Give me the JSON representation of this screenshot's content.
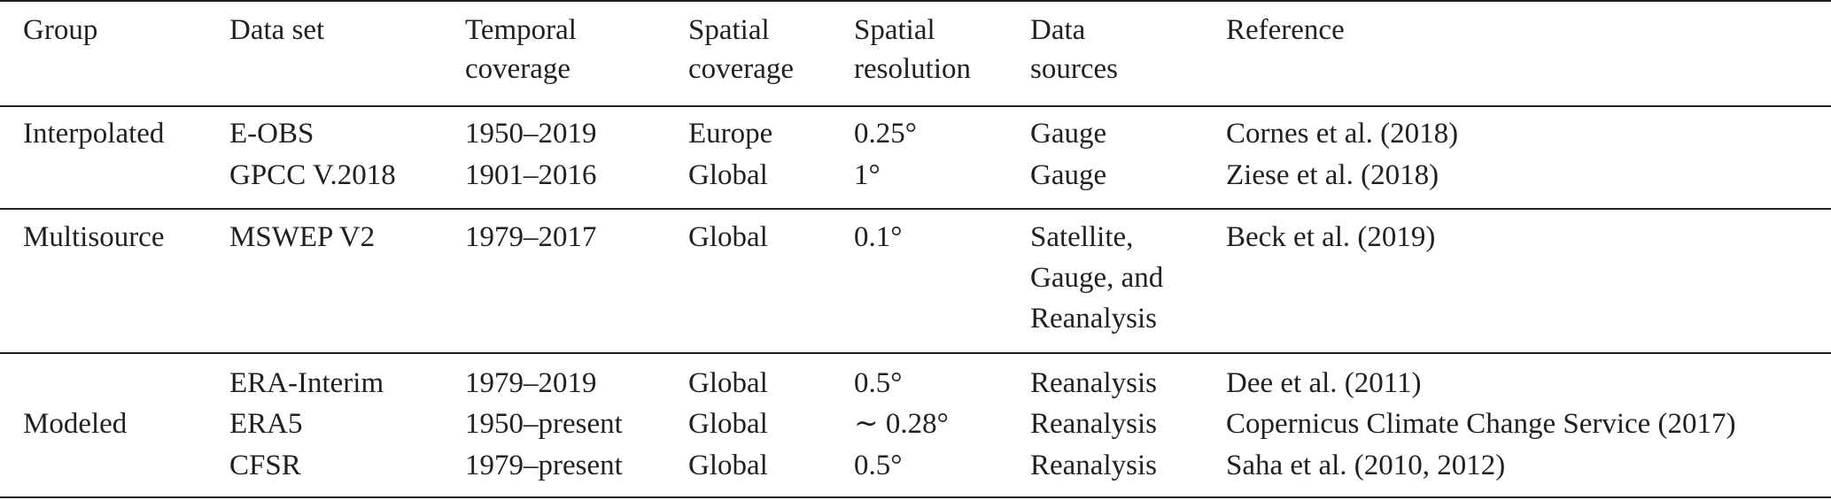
{
  "header": {
    "group": "Group",
    "dataset": "Data set",
    "temporal": [
      "Temporal",
      "coverage"
    ],
    "spatial_cov": [
      "Spatial",
      "coverage"
    ],
    "spatial_res": [
      "Spatial",
      "resolution"
    ],
    "sources": [
      "Data",
      "sources"
    ],
    "reference": "Reference"
  },
  "groups": {
    "interpolated": "Interpolated",
    "multisource": "Multisource",
    "modeled": "Modeled"
  },
  "rows": [
    {
      "dataset": "E-OBS",
      "temporal": "1950–2019",
      "coverage": "Europe",
      "resolution": "0.25°",
      "sources": "Gauge",
      "reference": "Cornes et al. (2018)"
    },
    {
      "dataset": "GPCC V.2018",
      "temporal": "1901–2016",
      "coverage": "Global",
      "resolution": "1°",
      "sources": "Gauge",
      "reference": "Ziese et al. (2018)"
    },
    {
      "dataset": "MSWEP V2",
      "temporal": "1979–2017",
      "coverage": "Global",
      "resolution": "0.1°",
      "sources": [
        "Satellite,",
        "Gauge, and",
        "Reanalysis"
      ],
      "reference": "Beck et al. (2019)"
    },
    {
      "dataset": "ERA-Interim",
      "temporal": "1979–2019",
      "coverage": "Global",
      "resolution": "0.5°",
      "sources": "Reanalysis",
      "reference": "Dee et al. (2011)"
    },
    {
      "dataset": "ERA5",
      "temporal": "1950–present",
      "coverage": "Global",
      "resolution": "∼ 0.28°",
      "sources": "Reanalysis",
      "reference": "Copernicus Climate Change Service (2017)"
    },
    {
      "dataset": "CFSR",
      "temporal": "1979–present",
      "coverage": "Global",
      "resolution": "0.5°",
      "sources": "Reanalysis",
      "reference": "Saha et al. (2010, 2012)"
    }
  ]
}
